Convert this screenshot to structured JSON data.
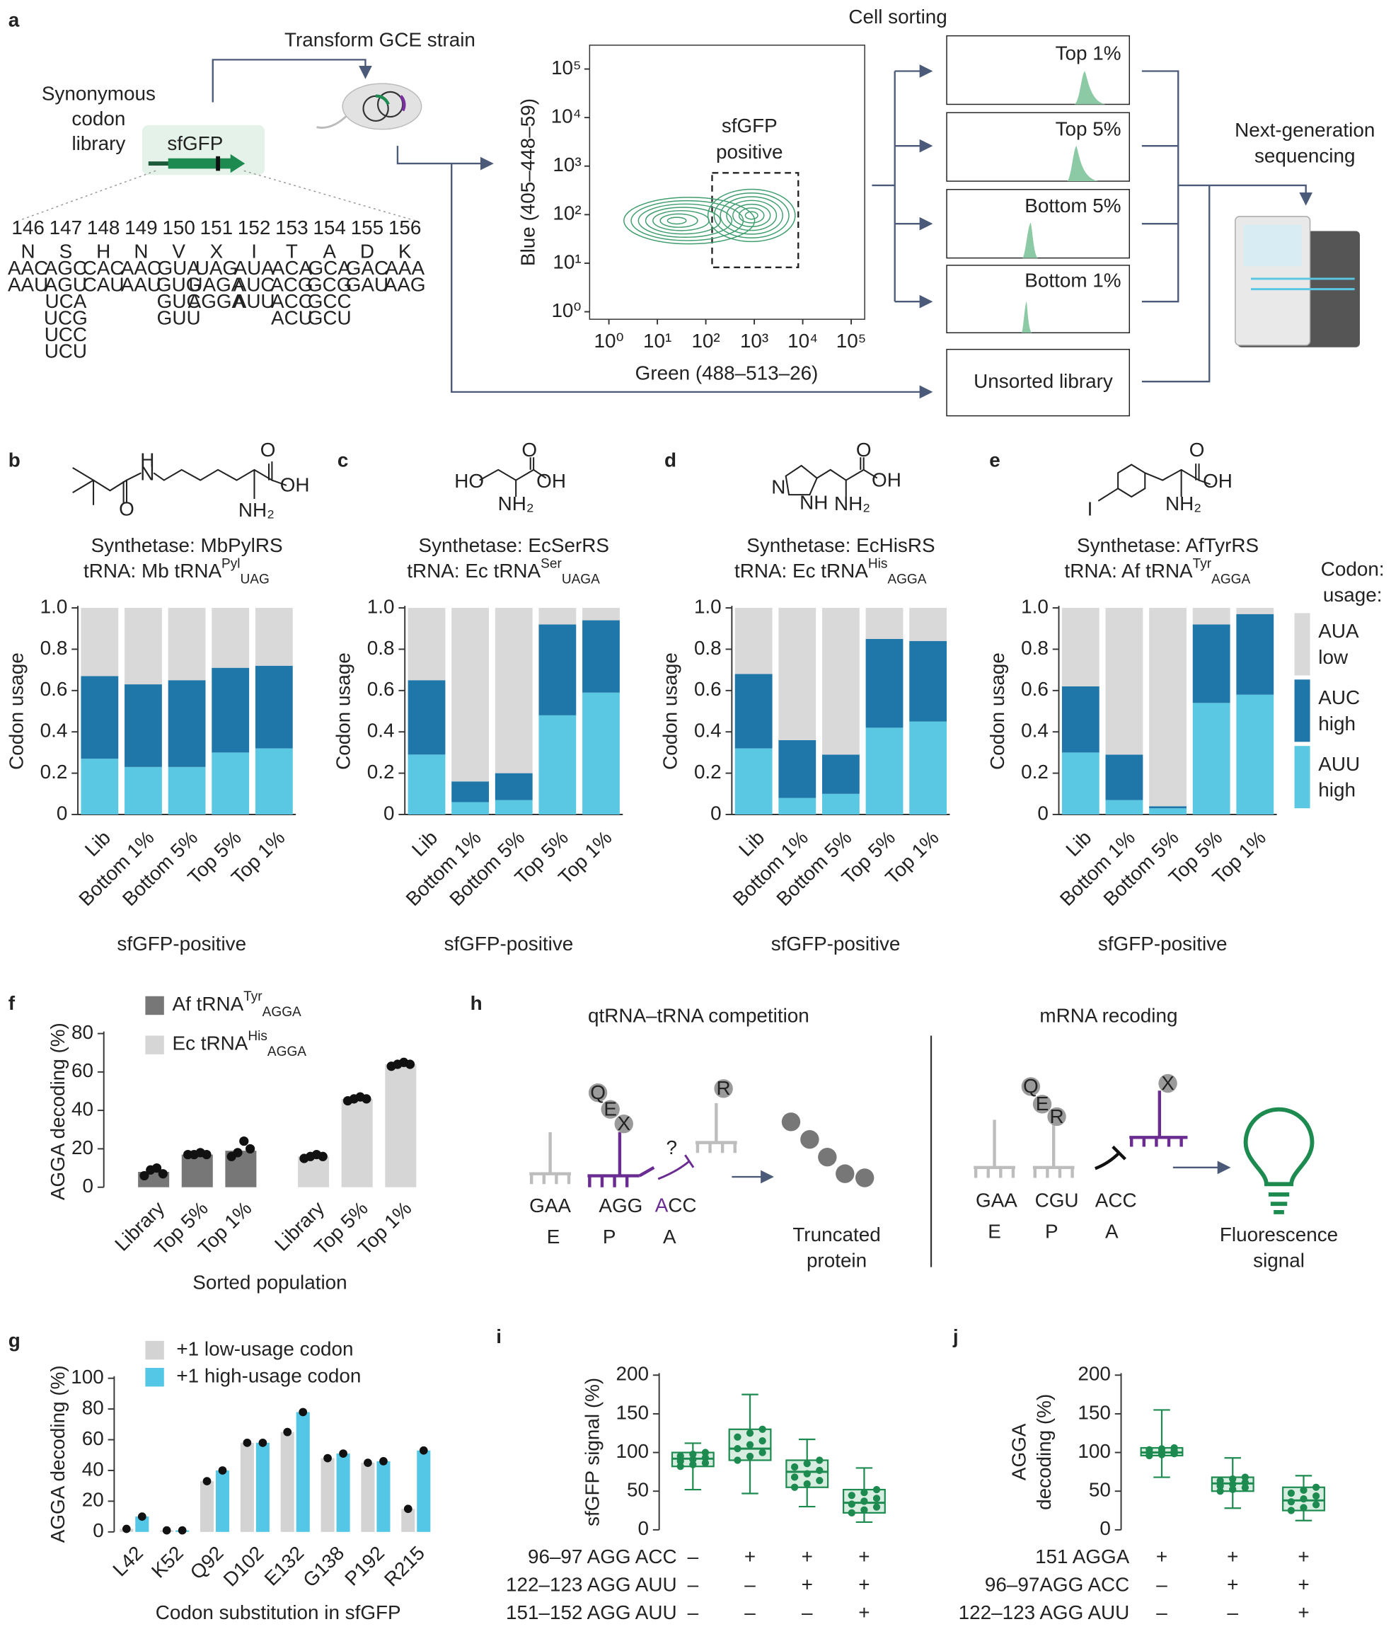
{
  "panel_labels": [
    "a",
    "b",
    "c",
    "d",
    "e",
    "f",
    "g",
    "h",
    "i",
    "j"
  ],
  "panel_a": {
    "transform": "Transform GCE strain",
    "library": [
      "Synonymous",
      "codon",
      "library"
    ],
    "gene": "sfGFP",
    "positions": [
      {
        "number": 146,
        "aa": "N",
        "color": "#1d8a50",
        "codons": [
          "AAC",
          "AAU"
        ]
      },
      {
        "number": 147,
        "aa": "S",
        "color": "#1d8a50",
        "codons": [
          "AGC",
          "AGU",
          "UCA",
          "UCG",
          "UCC",
          "UCU"
        ]
      },
      {
        "number": 148,
        "aa": "H",
        "color": "#1d8a50",
        "codons": [
          "CAC",
          "CAU"
        ]
      },
      {
        "number": 149,
        "aa": "N",
        "color": "#1d8a50",
        "codons": [
          "AAC",
          "AAU"
        ]
      },
      {
        "number": 150,
        "aa": "V",
        "color": "#1d8a50",
        "codons": [
          "GUA",
          "GUG",
          "GUC",
          "GUU"
        ]
      },
      {
        "number": 151,
        "aa": "X",
        "color": "#222222",
        "codons": [
          "UAG",
          "UAGA",
          "AGGA"
        ]
      },
      {
        "number": 152,
        "aa": "I",
        "color": "#1d8a50",
        "codons": [
          "AUA",
          "AUC",
          "AUU"
        ]
      },
      {
        "number": 153,
        "aa": "T",
        "color": "#1d8a50",
        "codons": [
          "ACA",
          "ACG",
          "ACC",
          "ACU"
        ]
      },
      {
        "number": 154,
        "aa": "A",
        "color": "#1d8a50",
        "codons": [
          "GCA",
          "GCG",
          "GCC",
          "GCU"
        ]
      },
      {
        "number": 155,
        "aa": "D",
        "color": "#1d8a50",
        "codons": [
          "GAC",
          "GAU"
        ]
      },
      {
        "number": 156,
        "aa": "K",
        "color": "#1d8a50",
        "codons": [
          "AAA",
          "AAG"
        ]
      }
    ],
    "cell_sorting": "Cell sorting",
    "gates": [
      "Top 1%",
      "Top 5%",
      "Bottom 5%",
      "Bottom 1%"
    ],
    "unsorted": "Unsorted library",
    "ngs": [
      "Next-generation",
      "sequencing"
    ]
  },
  "molecules": [
    [
      "O",
      "H",
      "N",
      "O",
      "OH",
      "NH₂"
    ],
    [
      "HO",
      "O",
      "OH",
      "NH₂"
    ],
    [
      "N",
      "NH",
      "O",
      "OH",
      "NH₂"
    ],
    [
      "I",
      "O",
      "OH",
      "NH₂"
    ]
  ],
  "chart_data": [
    {
      "type": "contour",
      "xlabel": "Green (488–513–26)",
      "ylabel": "Blue (405–448–59)",
      "xscale": "log",
      "yscale": "log",
      "xlim": [
        0.4,
        190000
      ],
      "ylim": [
        0.7,
        310000
      ],
      "xticks": [
        {
          "value": 1,
          "label": "10⁰"
        },
        {
          "value": 10,
          "label": "10¹"
        },
        {
          "value": 100,
          "label": "10²"
        },
        {
          "value": 1000,
          "label": "10³"
        },
        {
          "value": 10000,
          "label": "10⁴"
        },
        {
          "value": 100000,
          "label": "10⁵"
        }
      ],
      "yticks": [
        {
          "value": 1,
          "label": "10⁰"
        },
        {
          "value": 10,
          "label": "10¹"
        },
        {
          "value": 100,
          "label": "10²"
        },
        {
          "value": 1000,
          "label": "10³"
        },
        {
          "value": 10000,
          "label": "10⁴"
        },
        {
          "value": 100000,
          "label": "10⁵"
        }
      ],
      "annotation": [
        "sfGFP",
        "positive"
      ],
      "color": "#3f9d6e"
    },
    {
      "type": "stacked_bar",
      "title": "Synthetase: MbPylRS",
      "subtitle": {
        "text": "tRNA: Mb tRNA",
        "sup": "Pyl",
        "sub": "UAG"
      },
      "categories": [
        "Lib",
        "Bottom 1%",
        "Bottom 5%",
        "Top 5%",
        "Top 1%"
      ],
      "xlabel": "sfGFP-positive",
      "ylabel": "Codon usage",
      "ylim": [
        0,
        1
      ],
      "yticks": [
        0,
        0.2,
        0.4,
        0.6,
        0.8,
        {
          "value": 1,
          "label": "1.0"
        }
      ],
      "series": [
        {
          "color": "#5ac8e2",
          "values": [
            0.27,
            0.23,
            0.23,
            0.3,
            0.32
          ]
        },
        {
          "color": "#1f77a9",
          "values": [
            0.4,
            0.4,
            0.42,
            0.41,
            0.4
          ]
        },
        {
          "color": "#d9d9d9",
          "values": [
            0.33,
            0.37,
            0.35,
            0.29,
            0.28
          ]
        }
      ]
    },
    {
      "type": "stacked_bar",
      "title": "Synthetase: EcSerRS",
      "subtitle": {
        "text": "tRNA: Ec tRNA",
        "sup": "Ser",
        "sub": "UAGA"
      },
      "categories": [
        "Lib",
        "Bottom 1%",
        "Bottom 5%",
        "Top 5%",
        "Top 1%"
      ],
      "xlabel": "sfGFP-positive",
      "ylabel": "Codon usage",
      "ylim": [
        0,
        1
      ],
      "yticks": [
        0,
        0.2,
        0.4,
        0.6,
        0.8,
        {
          "value": 1,
          "label": "1.0"
        }
      ],
      "series": [
        {
          "color": "#5ac8e2",
          "values": [
            0.29,
            0.06,
            0.07,
            0.48,
            0.59
          ]
        },
        {
          "color": "#1f77a9",
          "values": [
            0.36,
            0.1,
            0.13,
            0.44,
            0.35
          ]
        },
        {
          "color": "#d9d9d9",
          "values": [
            0.35,
            0.84,
            0.8,
            0.08,
            0.06
          ]
        }
      ]
    },
    {
      "type": "stacked_bar",
      "title": "Synthetase: EcHisRS",
      "subtitle": {
        "text": "tRNA: Ec tRNA",
        "sup": "His",
        "sub": "AGGA"
      },
      "categories": [
        "Lib",
        "Bottom 1%",
        "Bottom 5%",
        "Top 5%",
        "Top 1%"
      ],
      "xlabel": "sfGFP-positive",
      "ylabel": "Codon usage",
      "ylim": [
        0,
        1
      ],
      "yticks": [
        0,
        0.2,
        0.4,
        0.6,
        0.8,
        {
          "value": 1,
          "label": "1.0"
        }
      ],
      "series": [
        {
          "color": "#5ac8e2",
          "values": [
            0.32,
            0.08,
            0.1,
            0.42,
            0.45
          ]
        },
        {
          "color": "#1f77a9",
          "values": [
            0.36,
            0.28,
            0.19,
            0.43,
            0.39
          ]
        },
        {
          "color": "#d9d9d9",
          "values": [
            0.32,
            0.64,
            0.71,
            0.15,
            0.16
          ]
        }
      ]
    },
    {
      "type": "stacked_bar",
      "title": "Synthetase: AfTyrRS",
      "subtitle": {
        "text": "tRNA: Af tRNA",
        "sup": "Tyr",
        "sub": "AGGA"
      },
      "categories": [
        "Lib",
        "Bottom 1%",
        "Bottom 5%",
        "Top 5%",
        "Top 1%"
      ],
      "xlabel": "sfGFP-positive",
      "ylabel": "Codon usage",
      "ylim": [
        0,
        1
      ],
      "yticks": [
        0,
        0.2,
        0.4,
        0.6,
        0.8,
        {
          "value": 1,
          "label": "1.0"
        }
      ],
      "legend_title": [
        "Codon:",
        "usage:"
      ],
      "series": [
        {
          "name": "AUU high",
          "color": "#5ac8e2",
          "values": [
            0.3,
            0.07,
            0.03,
            0.54,
            0.58
          ]
        },
        {
          "name": "AUC high",
          "color": "#1f77a9",
          "values": [
            0.32,
            0.22,
            0.01,
            0.38,
            0.39
          ]
        },
        {
          "name": "AUA low",
          "color": "#d9d9d9",
          "values": [
            0.38,
            0.71,
            0.96,
            0.08,
            0.03
          ]
        }
      ]
    },
    {
      "type": "bar_groups",
      "ylabel": "AGGA decoding (%)",
      "xlabel": "Sorted population",
      "categories": [
        "Library",
        "Top 5%",
        "Top 1%"
      ],
      "ylim": [
        0,
        80
      ],
      "yticks": [
        0,
        20,
        40,
        60,
        80
      ],
      "series": [
        {
          "name": "Af tRNA",
          "name_sup": "Tyr",
          "name_sub": "AGGA",
          "color": "#777777",
          "values": [
            8,
            17,
            19
          ],
          "points": [
            [
              6,
              9,
              10,
              7
            ],
            [
              17,
              17,
              18,
              17
            ],
            [
              16,
              18,
              24,
              20
            ]
          ]
        },
        {
          "name": "Ec tRNA",
          "name_sup": "His",
          "name_sub": "AGGA",
          "color": "#d6d6d6",
          "values": [
            16,
            46,
            64
          ],
          "points": [
            [
              15,
              16,
              17,
              16
            ],
            [
              45,
              46,
              47,
              46
            ],
            [
              63,
              64,
              65,
              64
            ]
          ]
        }
      ]
    },
    {
      "type": "grouped_bar",
      "ylabel": "AGGA decoding (%)",
      "xlabel": "Codon substitution in sfGFP",
      "categories": [
        "L42",
        "K52",
        "Q92",
        "D102",
        "E132",
        "G138",
        "P192",
        "R215"
      ],
      "ylim": [
        0,
        100
      ],
      "yticks": [
        0,
        20,
        40,
        60,
        80,
        100
      ],
      "series": [
        {
          "name": "+1 low-usage codon",
          "color": "#d3d3d3",
          "values": [
            2,
            1,
            33,
            58,
            65,
            48,
            45,
            15
          ]
        },
        {
          "name": "+1 high-usage codon",
          "color": "#55c7e6",
          "values": [
            10,
            1,
            40,
            58,
            78,
            51,
            46,
            53
          ]
        }
      ]
    },
    {
      "type": "box",
      "ylabel": "sfGFP signal (%)",
      "ylim": [
        0,
        200
      ],
      "yticks": [
        0,
        50,
        100,
        150,
        200
      ],
      "color": "#1d8a50",
      "fill": "#d6ede0",
      "boxes": [
        {
          "min": 52,
          "q1": 82,
          "median": 92,
          "q3": 100,
          "max": 112
        },
        {
          "min": 47,
          "q1": 90,
          "median": 105,
          "q3": 130,
          "max": 175
        },
        {
          "min": 30,
          "q1": 55,
          "median": 75,
          "q3": 90,
          "max": 117
        },
        {
          "min": 10,
          "q1": 22,
          "median": 35,
          "q3": 52,
          "max": 80
        }
      ],
      "conditions": [
        {
          "label": "96–97 AGG ACC",
          "values": [
            "–",
            "+",
            "+",
            "+"
          ]
        },
        {
          "label": "122–123 AGG AUU",
          "values": [
            "–",
            "–",
            "+",
            "+"
          ]
        },
        {
          "label": "151–152 AGG AUU",
          "values": [
            "–",
            "–",
            "–",
            "+"
          ]
        }
      ]
    },
    {
      "type": "box",
      "ylabel": [
        "AGGA",
        "decoding (%)"
      ],
      "ylim": [
        0,
        200
      ],
      "yticks": [
        0,
        50,
        100,
        150,
        200
      ],
      "color": "#1d8a50",
      "fill": "#d6ede0",
      "boxes": [
        {
          "min": 68,
          "q1": 96,
          "median": 100,
          "q3": 106,
          "max": 155
        },
        {
          "min": 28,
          "q1": 50,
          "median": 60,
          "q3": 68,
          "max": 93
        },
        {
          "min": 12,
          "q1": 25,
          "median": 38,
          "q3": 55,
          "max": 70
        }
      ],
      "conditions": [
        {
          "label": "151 AGGA",
          "values": [
            "+",
            "+",
            "+"
          ]
        },
        {
          "label": "96–97AGG ACC",
          "values": [
            "–",
            "+",
            "+"
          ]
        },
        {
          "label": "122–123 AGG AUU",
          "values": [
            "–",
            "–",
            "+"
          ]
        }
      ]
    }
  ],
  "panel_h": {
    "left_title": "qtRNA–tRNA competition",
    "right_title": "mRNA recoding",
    "left_balls": [
      "Q",
      "E",
      "X"
    ],
    "left_ball_a": "R",
    "question": "?",
    "left_codons": [
      "GAA",
      "AGG",
      "ACC"
    ],
    "sites": [
      "E",
      "P",
      "A"
    ],
    "left_result": [
      "Truncated",
      "protein"
    ],
    "right_balls": [
      "Q",
      "E",
      "R"
    ],
    "right_ball_x": "X",
    "right_codons": [
      "GAA",
      "CGU",
      "ACC"
    ],
    "right_result": [
      "Fluorescence",
      "signal"
    ]
  }
}
